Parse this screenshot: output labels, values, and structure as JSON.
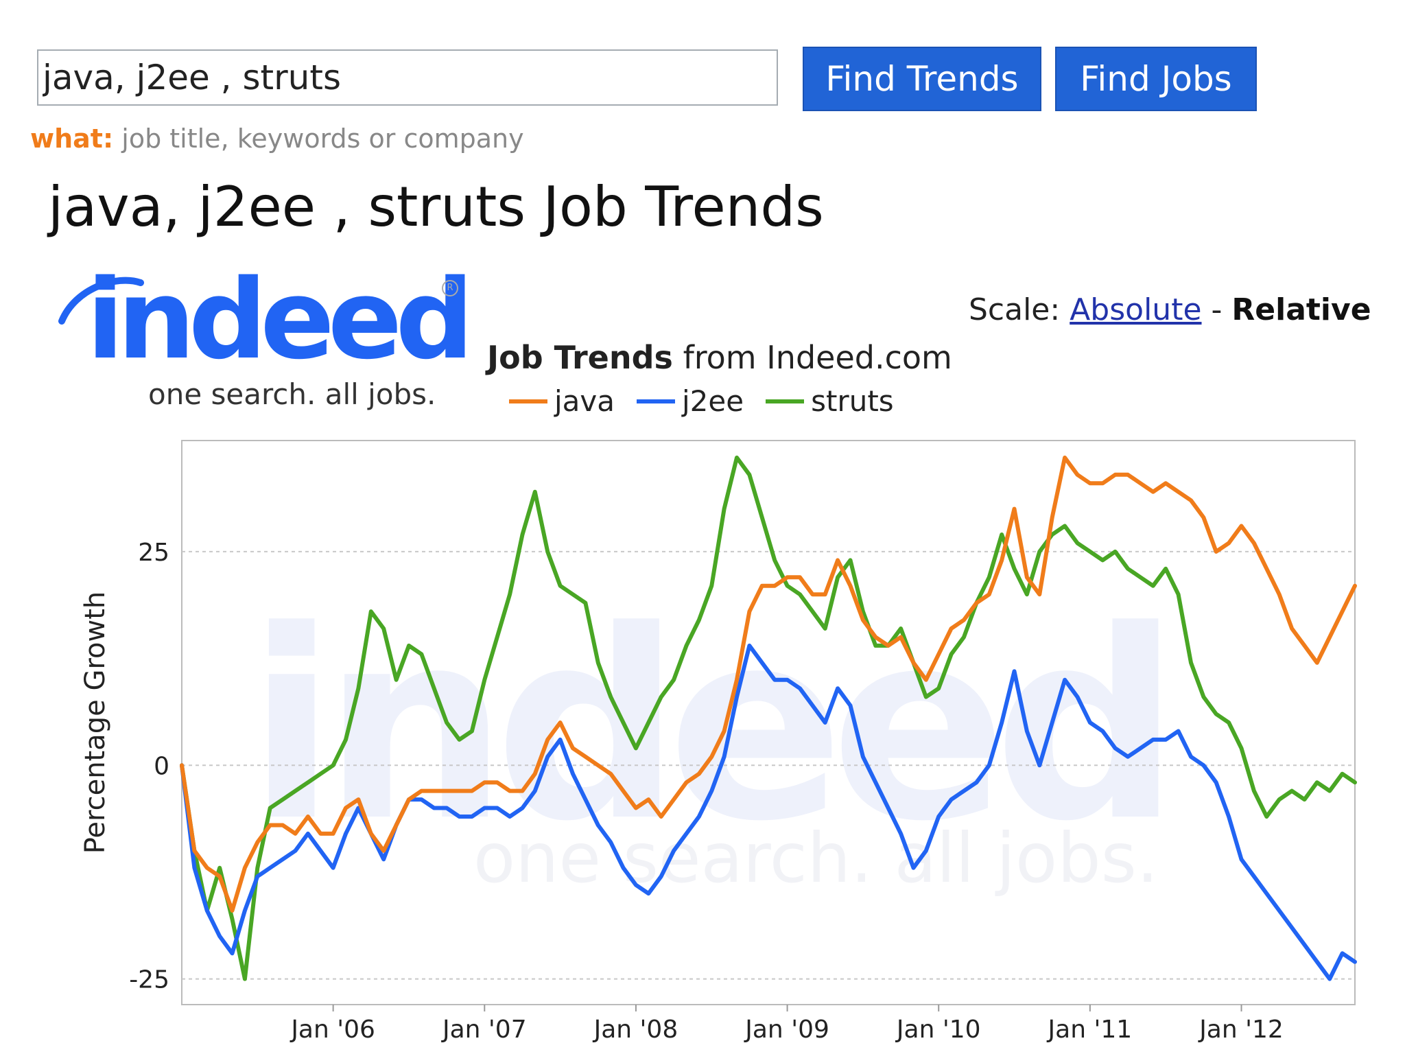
{
  "search": {
    "value": "java, j2ee , struts",
    "find_trends_label": "Find Trends",
    "find_jobs_label": "Find Jobs",
    "hint_label": "what:",
    "hint_text": "job title, keywords or company"
  },
  "page_title": "java, j2ee , struts Job Trends",
  "logo": {
    "word": "indeed",
    "tagline": "one search. all jobs.",
    "watermark_word": "indeed",
    "watermark_tagline": "one search. all jobs."
  },
  "scale": {
    "label": "Scale:",
    "absolute": "Absolute",
    "separator": "-",
    "relative": "Relative"
  },
  "chart_header": {
    "bold": "Job Trends",
    "rest": "from Indeed.com"
  },
  "chart_data": {
    "type": "line",
    "title": "Job Trends from Indeed.com",
    "ylabel": "Percentage Growth",
    "xlabel": "",
    "xlim": [
      "2005-01",
      "2012-10"
    ],
    "ylim": [
      -28,
      38
    ],
    "yticks": [
      -25,
      0,
      25
    ],
    "xticks": [
      "2006-01",
      "2007-01",
      "2008-01",
      "2009-01",
      "2010-01",
      "2011-01",
      "2012-01"
    ],
    "xtick_labels": [
      "Jan '06",
      "Jan '07",
      "Jan '08",
      "Jan '09",
      "Jan '10",
      "Jan '11",
      "Jan '12"
    ],
    "grid": "horizontal dashed",
    "legend": "top",
    "x": [
      "2005-01",
      "2005-02",
      "2005-03",
      "2005-04",
      "2005-05",
      "2005-06",
      "2005-07",
      "2005-08",
      "2005-09",
      "2005-10",
      "2005-11",
      "2005-12",
      "2006-01",
      "2006-02",
      "2006-03",
      "2006-04",
      "2006-05",
      "2006-06",
      "2006-07",
      "2006-08",
      "2006-09",
      "2006-10",
      "2006-11",
      "2006-12",
      "2007-01",
      "2007-02",
      "2007-03",
      "2007-04",
      "2007-05",
      "2007-06",
      "2007-07",
      "2007-08",
      "2007-09",
      "2007-10",
      "2007-11",
      "2007-12",
      "2008-01",
      "2008-02",
      "2008-03",
      "2008-04",
      "2008-05",
      "2008-06",
      "2008-07",
      "2008-08",
      "2008-09",
      "2008-10",
      "2008-11",
      "2008-12",
      "2009-01",
      "2009-02",
      "2009-03",
      "2009-04",
      "2009-05",
      "2009-06",
      "2009-07",
      "2009-08",
      "2009-09",
      "2009-10",
      "2009-11",
      "2009-12",
      "2010-01",
      "2010-02",
      "2010-03",
      "2010-04",
      "2010-05",
      "2010-06",
      "2010-07",
      "2010-08",
      "2010-09",
      "2010-10",
      "2010-11",
      "2010-12",
      "2011-01",
      "2011-02",
      "2011-03",
      "2011-04",
      "2011-05",
      "2011-06",
      "2011-07",
      "2011-08",
      "2011-09",
      "2011-10",
      "2011-11",
      "2011-12",
      "2012-01",
      "2012-02",
      "2012-03",
      "2012-04",
      "2012-05",
      "2012-06",
      "2012-07",
      "2012-08",
      "2012-09",
      "2012-10"
    ],
    "series": [
      {
        "name": "java",
        "color": "#f07c1a",
        "values": [
          0,
          -10,
          -12,
          -13,
          -17,
          -12,
          -9,
          -7,
          -7,
          -8,
          -6,
          -8,
          -8,
          -5,
          -4,
          -8,
          -10,
          -7,
          -4,
          -3,
          -3,
          -3,
          -3,
          -3,
          -2,
          -2,
          -3,
          -3,
          -1,
          3,
          5,
          2,
          1,
          0,
          -1,
          -3,
          -5,
          -4,
          -6,
          -4,
          -2,
          -1,
          1,
          4,
          10,
          18,
          21,
          21,
          22,
          22,
          20,
          20,
          24,
          21,
          17,
          15,
          14,
          15,
          12,
          10,
          13,
          16,
          17,
          19,
          20,
          24,
          30,
          22,
          20,
          29,
          36,
          34,
          33,
          33,
          34,
          34,
          33,
          32,
          33,
          32,
          31,
          29,
          25,
          26,
          28,
          26,
          23,
          20,
          16,
          14,
          12,
          15,
          18,
          21
        ]
      },
      {
        "name": "j2ee",
        "color": "#2164f3",
        "values": [
          0,
          -12,
          -17,
          -20,
          -22,
          -17,
          -13,
          -12,
          -11,
          -10,
          -8,
          -10,
          -12,
          -8,
          -5,
          -8,
          -11,
          -7,
          -4,
          -4,
          -5,
          -5,
          -6,
          -6,
          -5,
          -5,
          -6,
          -5,
          -3,
          1,
          3,
          -1,
          -4,
          -7,
          -9,
          -12,
          -14,
          -15,
          -13,
          -10,
          -8,
          -6,
          -3,
          1,
          8,
          14,
          12,
          10,
          10,
          9,
          7,
          5,
          9,
          7,
          1,
          -2,
          -5,
          -8,
          -12,
          -10,
          -6,
          -4,
          -3,
          -2,
          0,
          5,
          11,
          4,
          0,
          5,
          10,
          8,
          5,
          4,
          2,
          1,
          2,
          3,
          3,
          4,
          1,
          0,
          -2,
          -6,
          -11,
          -13,
          -15,
          -17,
          -19,
          -21,
          -23,
          -25,
          -22,
          -23
        ]
      },
      {
        "name": "struts",
        "color": "#49a624",
        "values": [
          0,
          -10,
          -17,
          -12,
          -18,
          -25,
          -12,
          -5,
          -4,
          -3,
          -2,
          -1,
          0,
          3,
          9,
          18,
          16,
          10,
          14,
          13,
          9,
          5,
          3,
          4,
          10,
          15,
          20,
          27,
          32,
          25,
          21,
          20,
          19,
          12,
          8,
          5,
          2,
          5,
          8,
          10,
          14,
          17,
          21,
          30,
          36,
          34,
          29,
          24,
          21,
          20,
          18,
          16,
          22,
          24,
          18,
          14,
          14,
          16,
          12,
          8,
          9,
          13,
          15,
          19,
          22,
          27,
          23,
          20,
          25,
          27,
          28,
          26,
          25,
          24,
          25,
          23,
          22,
          21,
          23,
          20,
          12,
          8,
          6,
          5,
          2,
          -3,
          -6,
          -4,
          -3,
          -4,
          -2,
          -3,
          -1,
          -2
        ]
      }
    ]
  }
}
